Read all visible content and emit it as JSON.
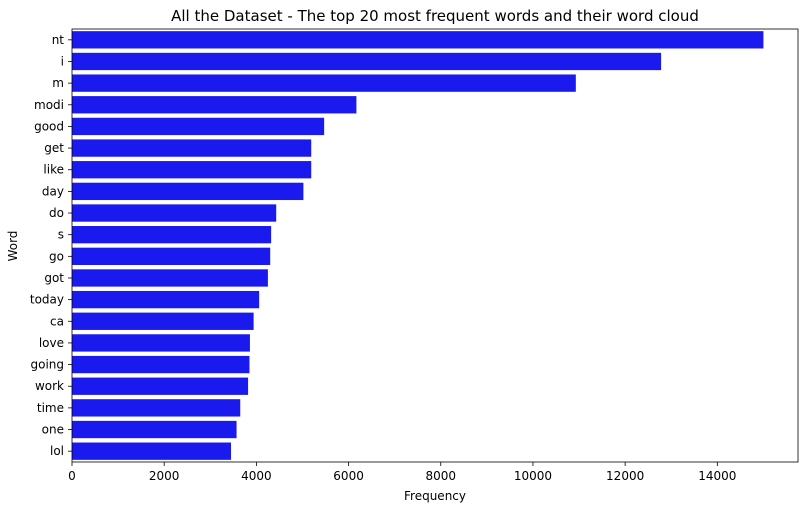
{
  "chart_data": {
    "type": "bar",
    "orientation": "horizontal",
    "title": "All the Dataset - The top 20 most frequent words and their word cloud",
    "xlabel": "Frequency",
    "ylabel": "Word",
    "xlim": [
      0,
      15750
    ],
    "xticks": [
      0,
      2000,
      4000,
      6000,
      8000,
      10000,
      12000,
      14000
    ],
    "xtick_labels": [
      "0",
      "2000",
      "4000",
      "6000",
      "8000",
      "10000",
      "12000",
      "14000"
    ],
    "categories": [
      "nt",
      "i",
      "m",
      "modi",
      "good",
      "get",
      "like",
      "day",
      "do",
      "s",
      "go",
      "got",
      "today",
      "ca",
      "love",
      "going",
      "work",
      "time",
      "one",
      "lol"
    ],
    "values": [
      15000,
      12780,
      10930,
      6170,
      5470,
      5190,
      5190,
      5020,
      4430,
      4320,
      4300,
      4250,
      4060,
      3940,
      3860,
      3850,
      3820,
      3650,
      3570,
      3450
    ],
    "bar_color": "#1a1aee",
    "grid": false,
    "legend": "none"
  }
}
